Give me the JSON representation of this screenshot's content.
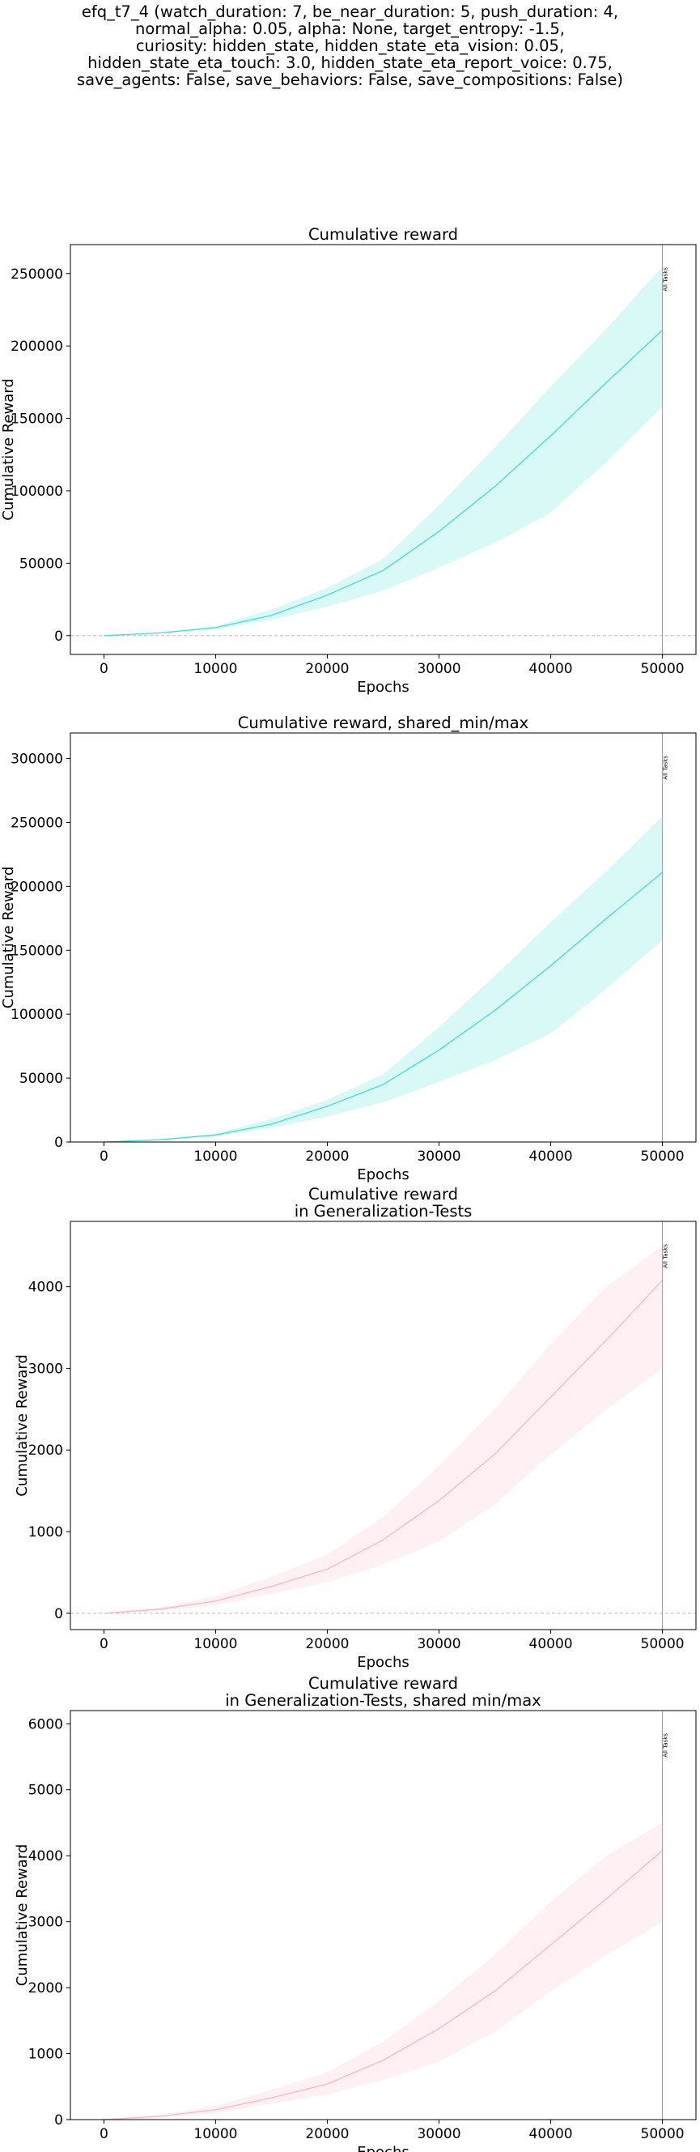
{
  "figure": {
    "suptitle_lines": [
      "efq_t7_4 (watch_duration: 7, be_near_duration: 5, push_duration: 4,",
      "normal_alpha: 0.05, alpha: None, target_entropy: -1.5,",
      "curiosity: hidden_state, hidden_state_eta_vision: 0.05,",
      "hidden_state_eta_touch: 3.0, hidden_state_eta_report_voice: 0.75,",
      "save_agents: False, save_behaviors: False, save_compositions: False)"
    ]
  },
  "chart_data": [
    {
      "type": "line",
      "title": [
        "Cumulative reward"
      ],
      "xlabel": "Epochs",
      "ylabel": "Cumulative Reward",
      "xlim": [
        -3000,
        53000
      ],
      "ylim": [
        -13000,
        270000
      ],
      "xticks": [
        0,
        10000,
        20000,
        30000,
        40000,
        50000
      ],
      "yticks": [
        0,
        50000,
        100000,
        150000,
        200000,
        250000
      ],
      "hline": 0,
      "vline": {
        "x": 50000,
        "label": "All Tasks"
      },
      "color": "#40e0d0",
      "series": [
        {
          "x": [
            0,
            5000,
            10000,
            15000,
            20000,
            25000,
            30000,
            35000,
            40000,
            45000,
            50000
          ],
          "mean": [
            0,
            1800,
            5500,
            14000,
            28000,
            45000,
            72000,
            103000,
            138000,
            175000,
            211000
          ],
          "min": [
            0,
            1400,
            4500,
            11000,
            20000,
            31000,
            47000,
            64000,
            85000,
            120000,
            158000
          ],
          "max": [
            0,
            2100,
            6700,
            18000,
            33000,
            53000,
            90000,
            130000,
            172000,
            212000,
            255000
          ]
        }
      ]
    },
    {
      "type": "line",
      "title": [
        "Cumulative reward, shared_min/max"
      ],
      "xlabel": "Epochs",
      "ylabel": "Cumulative Reward",
      "xlim": [
        -3000,
        53000
      ],
      "ylim": [
        0,
        320000
      ],
      "xticks": [
        0,
        10000,
        20000,
        30000,
        40000,
        50000
      ],
      "yticks": [
        0,
        50000,
        100000,
        150000,
        200000,
        250000,
        300000
      ],
      "hline": null,
      "vline": {
        "x": 50000,
        "label": "All Tasks"
      },
      "color": "#40e0d0",
      "series": [
        {
          "x": [
            0,
            5000,
            10000,
            15000,
            20000,
            25000,
            30000,
            35000,
            40000,
            45000,
            50000
          ],
          "mean": [
            0,
            1800,
            5500,
            14000,
            28000,
            45000,
            72000,
            103000,
            138000,
            175000,
            211000
          ],
          "min": [
            0,
            1400,
            4500,
            11000,
            20000,
            31000,
            47000,
            64000,
            85000,
            120000,
            158000
          ],
          "max": [
            0,
            2100,
            6700,
            18000,
            33000,
            53000,
            90000,
            130000,
            172000,
            212000,
            255000
          ]
        }
      ]
    },
    {
      "type": "line",
      "title": [
        "Cumulative reward",
        "in Generalization-Tests"
      ],
      "xlabel": "Epochs",
      "ylabel": "Cumulative Reward",
      "xlim": [
        -3000,
        53000
      ],
      "ylim": [
        -200,
        4800
      ],
      "xticks": [
        0,
        10000,
        20000,
        30000,
        40000,
        50000
      ],
      "yticks": [
        0,
        1000,
        2000,
        3000,
        4000
      ],
      "hline": 0,
      "vline": {
        "x": 50000,
        "label": "All Tasks"
      },
      "color": "#ffb6c1",
      "series": [
        {
          "x": [
            0,
            5000,
            10000,
            15000,
            20000,
            25000,
            30000,
            35000,
            40000,
            45000,
            50000
          ],
          "mean": [
            0,
            50,
            150,
            330,
            540,
            900,
            1380,
            1950,
            2650,
            3350,
            4080
          ],
          "min": [
            0,
            30,
            100,
            240,
            380,
            600,
            880,
            1330,
            1950,
            2500,
            3000
          ],
          "max": [
            0,
            70,
            210,
            450,
            720,
            1180,
            1800,
            2500,
            3300,
            4000,
            4500
          ]
        }
      ]
    },
    {
      "type": "line",
      "title": [
        "Cumulative reward",
        "in Generalization-Tests, shared min/max"
      ],
      "xlabel": "Epochs",
      "ylabel": "Cumulative Reward",
      "xlim": [
        -3000,
        53000
      ],
      "ylim": [
        0,
        6200
      ],
      "xticks": [
        0,
        10000,
        20000,
        30000,
        40000,
        50000
      ],
      "yticks": [
        0,
        1000,
        2000,
        3000,
        4000,
        5000,
        6000
      ],
      "hline": null,
      "vline": {
        "x": 50000,
        "label": "All Tasks"
      },
      "color": "#ffb6c1",
      "series": [
        {
          "x": [
            0,
            5000,
            10000,
            15000,
            20000,
            25000,
            30000,
            35000,
            40000,
            45000,
            50000
          ],
          "mean": [
            0,
            50,
            150,
            330,
            540,
            900,
            1380,
            1950,
            2650,
            3350,
            4080
          ],
          "min": [
            0,
            30,
            100,
            240,
            380,
            600,
            880,
            1330,
            1950,
            2500,
            3000
          ],
          "max": [
            0,
            70,
            210,
            450,
            720,
            1180,
            1800,
            2500,
            3300,
            4000,
            4500
          ]
        }
      ]
    }
  ]
}
